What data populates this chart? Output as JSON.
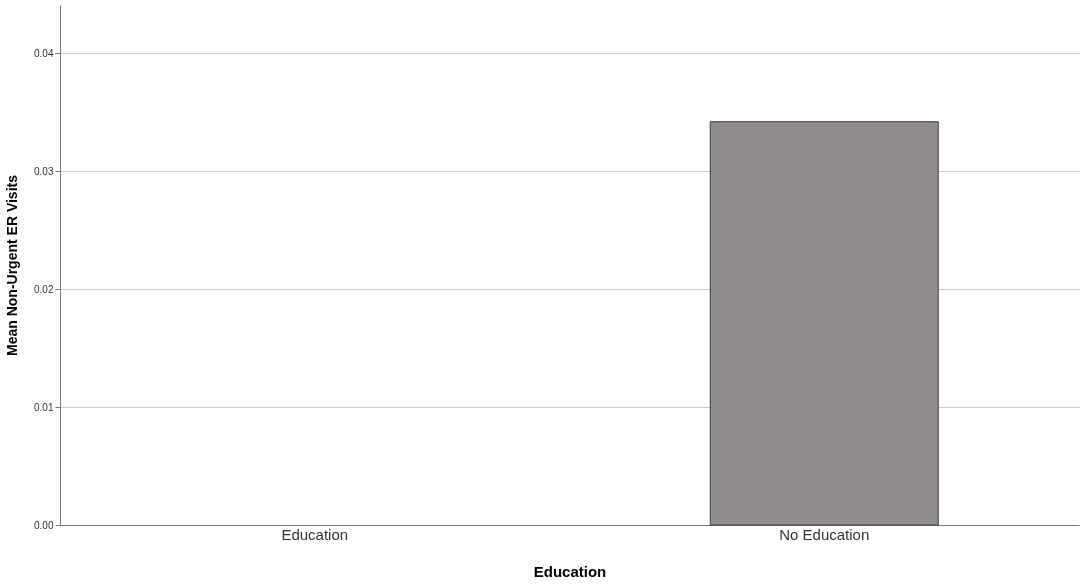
{
  "chart_data": {
    "type": "bar",
    "xlabel": "Education",
    "ylabel": "Mean Non-Urgent ER Visits",
    "categories": [
      "Education",
      "No Education"
    ],
    "values": [
      0,
      0.0342
    ],
    "color": "#918d8d",
    "ylim": [
      0,
      0.0441
    ],
    "yticks": [
      {
        "value": 0,
        "label": "0.00"
      },
      {
        "value": 0.01,
        "label": "0.01"
      },
      {
        "value": 0.02,
        "label": "0.02"
      },
      {
        "value": 0.03,
        "label": "0.03"
      },
      {
        "value": 0.04,
        "label": "0.04"
      }
    ],
    "grid": "y"
  }
}
